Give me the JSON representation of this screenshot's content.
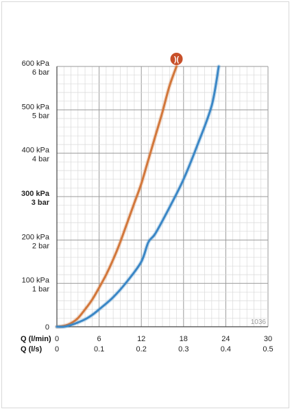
{
  "chart_data": {
    "type": "line",
    "y_ticks": [
      {
        "value": 600,
        "line1": "600 kPa",
        "line2": "6 bar",
        "bold": false
      },
      {
        "value": 500,
        "line1": "500 kPa",
        "line2": "5 bar",
        "bold": false
      },
      {
        "value": 400,
        "line1": "400 kPa",
        "line2": "4 bar",
        "bold": false
      },
      {
        "value": 300,
        "line1": "300 kPa",
        "line2": "3 bar",
        "bold": true
      },
      {
        "value": 200,
        "line1": "200 kPa",
        "line2": "2 bar",
        "bold": false
      },
      {
        "value": 100,
        "line1": "100 kPa",
        "line2": "1 bar",
        "bold": false
      },
      {
        "value": 0,
        "line1": "0",
        "line2": "",
        "bold": false
      }
    ],
    "x_ticks_lmin": [
      "0",
      "6",
      "12",
      "18",
      "24",
      "30"
    ],
    "x_ticks_ls": [
      "0",
      "0.1",
      "0.2",
      "0.3",
      "0.4",
      "0.5"
    ],
    "x_axis_label_lmin": "Q (l/min)",
    "x_axis_label_ls": "Q (l/s)",
    "xlim": [
      0,
      30
    ],
    "ylim": [
      0,
      600
    ],
    "grid": true,
    "series": [
      {
        "color": "#d2773b",
        "x": [
          0,
          1,
          2,
          3,
          4,
          5,
          6,
          7,
          8,
          9,
          10,
          11,
          12,
          13,
          14,
          15,
          16,
          17
        ],
        "y": [
          0,
          2,
          8,
          20,
          40,
          62,
          90,
          120,
          155,
          195,
          240,
          285,
          330,
          385,
          440,
          495,
          555,
          600
        ]
      },
      {
        "color": "#3b87c6",
        "x": [
          0,
          1,
          2,
          3,
          4,
          5,
          6,
          8,
          10,
          12,
          13,
          14,
          16,
          18,
          20,
          22,
          23
        ],
        "y": [
          0,
          0,
          4,
          10,
          17,
          27,
          40,
          68,
          105,
          150,
          195,
          215,
          275,
          340,
          420,
          510,
          600
        ]
      }
    ],
    "marker_series_index": 0,
    "marker_color": "#c8502a",
    "marker_text": ")(",
    "code_label": "1036"
  }
}
